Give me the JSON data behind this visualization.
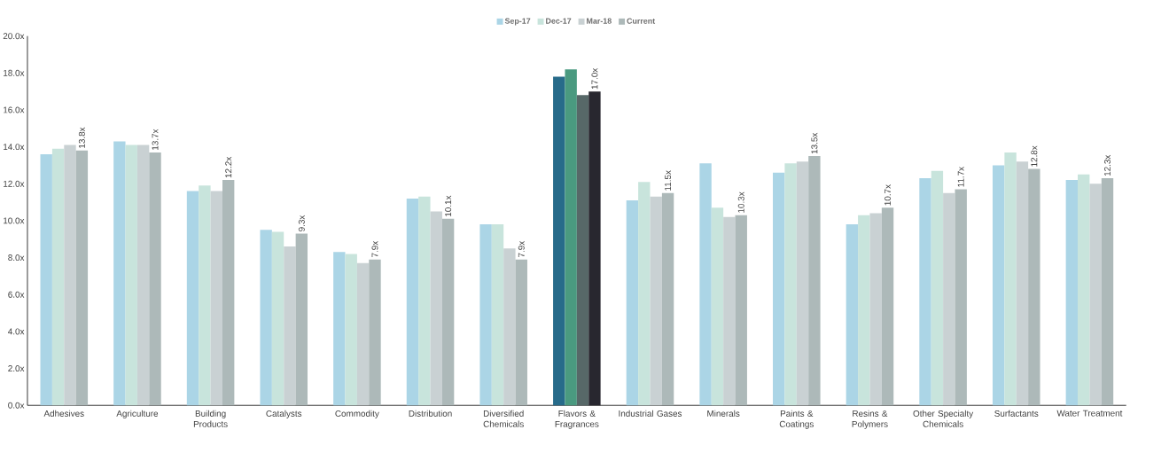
{
  "chart_data": {
    "type": "bar",
    "categories": [
      "Adhesives",
      "Agriculture",
      "Building Products",
      "Catalysts",
      "Commodity",
      "Distribution",
      "Diversified Chemicals",
      "Flavors & Fragrances",
      "Industrial Gases",
      "Minerals",
      "Paints & Coatings",
      "Resins & Polymers",
      "Other Specialty Chemicals",
      "Surfactants",
      "Water Treatment"
    ],
    "series": [
      {
        "name": "Sep-17",
        "color": "#abd5e6",
        "colors": [
          "#abd5e6",
          "#abd5e6",
          "#abd5e6",
          "#abd5e6",
          "#abd5e6",
          "#abd5e6",
          "#abd5e6",
          "#276b8a",
          "#abd5e6",
          "#abd5e6",
          "#abd5e6",
          "#abd5e6",
          "#abd5e6",
          "#abd5e6",
          "#abd5e6"
        ],
        "values": [
          13.6,
          14.3,
          11.6,
          9.5,
          8.3,
          11.2,
          9.8,
          17.8,
          11.1,
          13.1,
          12.6,
          9.8,
          12.3,
          13.0,
          12.2
        ]
      },
      {
        "name": "Dec-17",
        "color": "#c8e4dc",
        "colors": [
          "#c8e4dc",
          "#c8e4dc",
          "#c8e4dc",
          "#c8e4dc",
          "#c8e4dc",
          "#c8e4dc",
          "#c8e4dc",
          "#4a9a80",
          "#c8e4dc",
          "#c8e4dc",
          "#c8e4dc",
          "#c8e4dc",
          "#c8e4dc",
          "#c8e4dc",
          "#c8e4dc"
        ],
        "values": [
          13.9,
          14.1,
          11.9,
          9.4,
          8.2,
          11.3,
          9.8,
          18.2,
          12.1,
          10.7,
          13.1,
          10.3,
          12.7,
          13.7,
          12.5
        ]
      },
      {
        "name": "Mar-18",
        "color": "#c9d1d3",
        "colors": [
          "#c9d1d3",
          "#c9d1d3",
          "#c9d1d3",
          "#c9d1d3",
          "#c9d1d3",
          "#c9d1d3",
          "#c9d1d3",
          "#576868",
          "#c9d1d3",
          "#c9d1d3",
          "#c9d1d3",
          "#c9d1d3",
          "#c9d1d3",
          "#c9d1d3",
          "#c9d1d3"
        ],
        "values": [
          14.1,
          14.1,
          11.6,
          8.6,
          7.7,
          10.5,
          8.5,
          16.8,
          11.3,
          10.2,
          13.2,
          10.4,
          11.5,
          13.2,
          12.0
        ]
      },
      {
        "name": "Current",
        "color": "#adb9b9",
        "colors": [
          "#adb9b9",
          "#adb9b9",
          "#adb9b9",
          "#adb9b9",
          "#adb9b9",
          "#adb9b9",
          "#adb9b9",
          "#28272f",
          "#adb9b9",
          "#adb9b9",
          "#adb9b9",
          "#adb9b9",
          "#adb9b9",
          "#adb9b9",
          "#adb9b9"
        ],
        "values": [
          13.8,
          13.7,
          12.2,
          9.3,
          7.9,
          10.1,
          7.9,
          17.0,
          11.5,
          10.3,
          13.5,
          10.7,
          11.7,
          12.8,
          12.3
        ],
        "value_labels": [
          "13.8x",
          "13.7x",
          "12.2x",
          "9.3x",
          "7.9x",
          "10.1x",
          "7.9x",
          "17.0x",
          "11.5x",
          "10.3x",
          "13.5x",
          "10.7x",
          "11.7x",
          "12.8x",
          "12.3x"
        ]
      }
    ],
    "ylim": [
      0,
      20
    ],
    "yticks": [
      {
        "value": 0,
        "label": "0.0x"
      },
      {
        "value": 2,
        "label": "2.0x"
      },
      {
        "value": 4,
        "label": "4.0x"
      },
      {
        "value": 6,
        "label": "6.0x"
      },
      {
        "value": 8,
        "label": "8.0x"
      },
      {
        "value": 10,
        "label": "10.0x"
      },
      {
        "value": 12,
        "label": "12.0x"
      },
      {
        "value": 14,
        "label": "14.0x"
      },
      {
        "value": 16,
        "label": "16.0x"
      },
      {
        "value": 18,
        "label": "18.0x"
      },
      {
        "value": 20,
        "label": "20.0x"
      }
    ],
    "legend": "top"
  }
}
